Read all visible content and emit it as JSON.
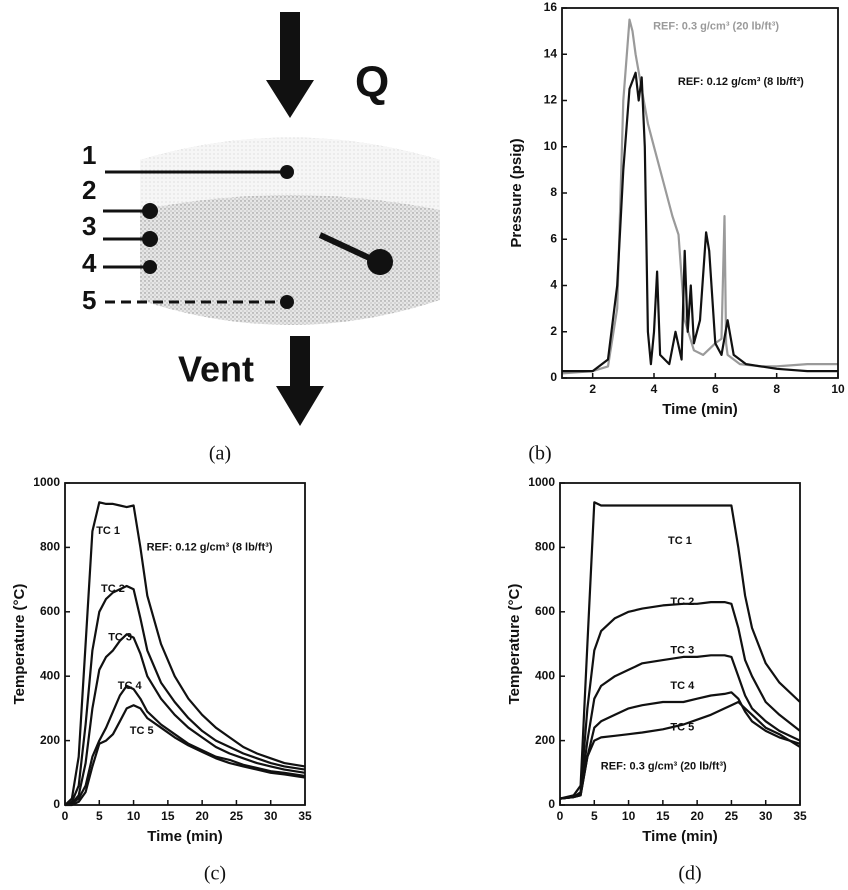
{
  "diagram": {
    "arrow_label": "Q",
    "vent_label": "Vent",
    "positions": [
      "1",
      "2",
      "3",
      "4",
      "5"
    ],
    "caption": "(a)"
  },
  "chart_data": [
    {
      "type": "line",
      "caption": "(b)",
      "xlabel": "Time (min)",
      "ylabel": "Pressure (psig)",
      "xlim": [
        1,
        10
      ],
      "xticks": [
        2,
        4,
        6,
        8,
        10
      ],
      "ylim": [
        0,
        16
      ],
      "yticks": [
        0,
        2,
        4,
        6,
        8,
        10,
        12,
        14,
        16
      ],
      "series": [
        {
          "name": "REF: 0.3 g/cm³ (20 lb/ft³)",
          "color": "#9a9a9a",
          "x": [
            1,
            2,
            2.5,
            2.8,
            3.0,
            3.2,
            3.3,
            3.4,
            3.6,
            3.8,
            4.0,
            4.3,
            4.6,
            4.8,
            5.0,
            5.3,
            5.6,
            6.0,
            6.2,
            6.3,
            6.35,
            6.4,
            6.8,
            7.5,
            8,
            9,
            10
          ],
          "values": [
            0.2,
            0.3,
            0.5,
            3,
            12,
            15.5,
            15,
            14,
            12.5,
            11,
            10,
            8.5,
            7,
            6.2,
            2.5,
            1.2,
            1,
            1.5,
            1.7,
            7,
            1.5,
            1,
            0.6,
            0.5,
            0.5,
            0.6,
            0.6
          ]
        },
        {
          "name": "REF: 0.12 g/cm³ (8 lb/ft³)",
          "color": "#111111",
          "x": [
            1,
            2,
            2.5,
            2.8,
            3.0,
            3.2,
            3.4,
            3.5,
            3.6,
            3.7,
            3.8,
            3.9,
            4.0,
            4.1,
            4.2,
            4.5,
            4.7,
            4.9,
            5.0,
            5.1,
            5.2,
            5.3,
            5.5,
            5.7,
            5.8,
            6.0,
            6.2,
            6.4,
            6.6,
            7,
            8,
            9,
            10
          ],
          "values": [
            0.3,
            0.3,
            0.8,
            4,
            9,
            12.5,
            13.2,
            12,
            13,
            10,
            2,
            0.6,
            2,
            4.6,
            1,
            0.6,
            2,
            0.8,
            5.5,
            2,
            4,
            1.5,
            2.5,
            6.3,
            5.5,
            1.5,
            1,
            2.5,
            1,
            0.6,
            0.4,
            0.3,
            0.3
          ]
        }
      ]
    },
    {
      "type": "line",
      "caption": "(c)",
      "xlabel": "Time (min)",
      "ylabel": "Temperature (°C)",
      "annotation": "REF: 0.12 g/cm³ (8 lb/ft³)",
      "xlim": [
        0,
        35
      ],
      "xticks": [
        0,
        5,
        10,
        15,
        20,
        25,
        30,
        35
      ],
      "ylim": [
        0,
        1000
      ],
      "yticks": [
        0,
        200,
        400,
        600,
        800,
        1000
      ],
      "x": [
        0,
        1,
        2,
        3,
        4,
        5,
        6,
        7,
        8,
        9,
        10,
        11,
        12,
        14,
        16,
        18,
        20,
        22,
        24,
        26,
        28,
        30,
        32,
        35
      ],
      "series": [
        {
          "name": "TC 1",
          "color": "#111111",
          "values": [
            0,
            20,
            150,
            500,
            850,
            940,
            935,
            935,
            930,
            925,
            930,
            800,
            650,
            500,
            400,
            330,
            280,
            240,
            210,
            180,
            160,
            145,
            130,
            120
          ]
        },
        {
          "name": "TC 2",
          "color": "#111111",
          "values": [
            0,
            10,
            60,
            250,
            480,
            600,
            640,
            660,
            670,
            680,
            670,
            580,
            480,
            380,
            320,
            270,
            230,
            200,
            180,
            160,
            145,
            130,
            120,
            110
          ]
        },
        {
          "name": "TC 3",
          "color": "#111111",
          "values": [
            0,
            5,
            30,
            130,
            300,
            420,
            460,
            480,
            510,
            530,
            520,
            470,
            400,
            330,
            280,
            240,
            210,
            180,
            160,
            145,
            130,
            120,
            110,
            100
          ]
        },
        {
          "name": "TC 4",
          "color": "#111111",
          "values": [
            0,
            5,
            20,
            60,
            150,
            200,
            240,
            290,
            340,
            370,
            360,
            330,
            290,
            250,
            220,
            190,
            170,
            150,
            140,
            125,
            115,
            105,
            100,
            90
          ]
        },
        {
          "name": "TC 5",
          "color": "#111111",
          "values": [
            0,
            0,
            10,
            40,
            120,
            190,
            200,
            220,
            260,
            300,
            310,
            300,
            270,
            240,
            210,
            185,
            165,
            145,
            130,
            120,
            110,
            100,
            95,
            85
          ]
        }
      ]
    },
    {
      "type": "line",
      "caption": "(d)",
      "xlabel": "Time (min)",
      "ylabel": "Temperature (°C)",
      "annotation": "REF: 0.3 g/cm³ (20 lb/ft³)",
      "xlim": [
        0,
        35
      ],
      "xticks": [
        0,
        5,
        10,
        15,
        20,
        25,
        30,
        35
      ],
      "ylim": [
        0,
        1000
      ],
      "yticks": [
        0,
        200,
        400,
        600,
        800,
        1000
      ],
      "x": [
        0,
        2,
        3,
        4,
        5,
        6,
        8,
        10,
        12,
        15,
        18,
        20,
        22,
        24,
        25,
        26,
        27,
        28,
        30,
        32,
        35
      ],
      "series": [
        {
          "name": "TC 1",
          "color": "#111111",
          "values": [
            20,
            30,
            60,
            500,
            940,
            930,
            930,
            930,
            930,
            930,
            930,
            930,
            930,
            930,
            930,
            800,
            650,
            550,
            440,
            380,
            320
          ]
        },
        {
          "name": "TC 2",
          "color": "#111111",
          "values": [
            20,
            25,
            40,
            300,
            480,
            540,
            580,
            600,
            610,
            620,
            625,
            625,
            630,
            630,
            625,
            550,
            450,
            400,
            320,
            280,
            230
          ]
        },
        {
          "name": "TC 3",
          "color": "#111111",
          "values": [
            20,
            25,
            35,
            200,
            330,
            370,
            400,
            420,
            440,
            450,
            460,
            460,
            465,
            465,
            460,
            400,
            340,
            300,
            260,
            230,
            200
          ]
        },
        {
          "name": "TC 4",
          "color": "#111111",
          "values": [
            20,
            25,
            30,
            150,
            240,
            260,
            280,
            300,
            310,
            320,
            320,
            330,
            340,
            345,
            350,
            330,
            290,
            260,
            230,
            210,
            190
          ]
        },
        {
          "name": "TC 5",
          "color": "#111111",
          "values": [
            20,
            25,
            30,
            150,
            200,
            210,
            215,
            220,
            225,
            235,
            250,
            265,
            280,
            300,
            310,
            320,
            300,
            280,
            240,
            220,
            180
          ]
        }
      ]
    }
  ]
}
